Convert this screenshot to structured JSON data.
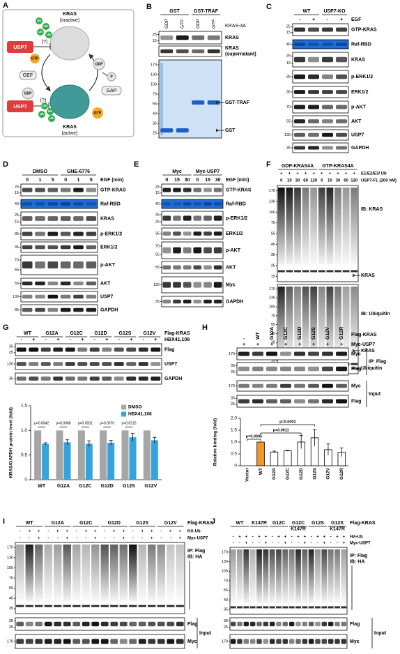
{
  "panels": {
    "A": {
      "letter": "A",
      "texts": [
        "KRAS",
        "(inactive)",
        "USP7",
        "(?)",
        "GTP",
        "GEF",
        "GDP",
        "GDP",
        "P",
        "GAP",
        "GTP",
        "USP7",
        "(?)",
        "KRAS",
        "(active)"
      ],
      "ub": [
        "Ub",
        "Ub",
        "Ub",
        "Ub",
        "Ub",
        "Ub",
        "Ub",
        "Ub"
      ]
    },
    "B": {
      "letter": "B",
      "groups": [
        "GST",
        "GST-TRAF"
      ],
      "conditions": [
        {
          "marks": [
            "GDP",
            "GTP",
            "GDP",
            "GTP"
          ]
        }
      ],
      "note": "KRAS-4A",
      "blots": [
        {
          "label": "KRAS",
          "mw": [
            25,
            15
          ]
        },
        {
          "label": [
            "KRAS",
            "(supernatant)"
          ]
        },
        {
          "arrow_labels": [
            "GST-TRAF",
            "GST"
          ],
          "mw": [
            170,
            130,
            100,
            70,
            55,
            40,
            35,
            25
          ]
        }
      ]
    },
    "C": {
      "letter": "C",
      "groups": [
        "WT",
        "USP7-KO"
      ],
      "conditions": [
        {
          "label": "EGF",
          "marks": [
            "-",
            "+",
            "-",
            "+"
          ]
        }
      ],
      "blots": [
        {
          "label": "GTP-KRAS",
          "mw": [
            25,
            15
          ]
        },
        {
          "label": "Raf-RBD",
          "mw": [
            40
          ]
        },
        {
          "label": "KRAS",
          "mw": [
            25,
            15
          ]
        },
        {
          "label": "p-ERK1/2",
          "mw": [
            35
          ]
        },
        {
          "label": "ERK1/2",
          "mw": [
            35
          ]
        },
        {
          "label": "p-AKT",
          "mw": [
            70
          ]
        },
        {
          "label": "AKT",
          "mw": [
            55
          ]
        },
        {
          "label": "USP7",
          "mw": [
            130
          ]
        },
        {
          "label": "GAPDH",
          "mw": [
            35
          ]
        }
      ]
    },
    "D": {
      "letter": "D",
      "groups": [
        "DMSO",
        "GNE-6776"
      ],
      "conditions": [
        {
          "label": "EGF (min)",
          "marks": [
            0,
            1,
            5,
            0,
            1,
            5
          ]
        }
      ],
      "blots": [
        {
          "label": "GTP-KRAS",
          "mw": [
            25,
            15
          ]
        },
        {
          "label": "Raf-RBD",
          "mw": [
            40
          ]
        },
        {
          "label": "KRAS",
          "mw": [
            25,
            15
          ]
        },
        {
          "label": "p-ERK1/2",
          "mw": [
            35
          ]
        },
        {
          "label": "ERK1/2",
          "mw": [
            35
          ]
        },
        {
          "label": "p-AKT",
          "mw": [
            70,
            55
          ]
        },
        {
          "label": "AKT",
          "mw": [
            55
          ]
        },
        {
          "label": "USP7",
          "mw": [
            130
          ]
        },
        {
          "label": "GAPDH",
          "mw": [
            35
          ]
        }
      ]
    },
    "E": {
      "letter": "E",
      "groups": [
        "Myc",
        "Myc-USP7"
      ],
      "conditions": [
        {
          "label": "EGF (min)",
          "marks": [
            0,
            15,
            30,
            0,
            15,
            30
          ]
        }
      ],
      "blots": [
        {
          "label": "GTP-KRAS",
          "mw": [
            25,
            15
          ]
        },
        {
          "label": "Raf-RBD",
          "mw": [
            40
          ]
        },
        {
          "label": "p-ERK1/2",
          "mw": [
            35,
            25
          ]
        },
        {
          "label": "ERK1/2",
          "mw": [
            35
          ]
        },
        {
          "label": "p-AKT",
          "mw": [
            70,
            55
          ]
        },
        {
          "label": "AKT",
          "mw": [
            55
          ]
        },
        {
          "label": "Myc",
          "mw": [
            130
          ]
        },
        {
          "label": "GAPDH",
          "mw": [
            35
          ]
        }
      ]
    },
    "F": {
      "letter": "F",
      "groups": [
        "GDP-KRAS4A",
        "GTP-KRAS4A"
      ],
      "conditions": [
        {
          "label": "E1/E2/E3/ Ub",
          "marks": [
            "+",
            "+",
            "+",
            "+",
            "+",
            "+",
            "+",
            "+",
            "+",
            "+"
          ]
        },
        {
          "label": "USP7-FL (200 nM)",
          "marks": [
            0,
            10,
            30,
            60,
            120,
            0,
            10,
            30,
            60,
            120
          ]
        }
      ],
      "blots": [
        {
          "label": "IB: KRAS",
          "arrow_labels": [
            "KRAS"
          ],
          "mw": [
            170,
            130,
            100,
            70,
            55,
            40,
            35,
            25,
            15
          ]
        },
        {
          "label": "IB: Ubiquitin",
          "arrow_labels": [
            "KRAS",
            "Ubiquitin"
          ],
          "mw": [
            170,
            130,
            100,
            70,
            55,
            40,
            35,
            25,
            15,
            10
          ]
        }
      ]
    },
    "G": {
      "letter": "G",
      "groups": [
        "WT",
        "G12A",
        "G12C",
        "G12D",
        "G12S",
        "G12V"
      ],
      "group_label": "Flag-KRAS",
      "conditions": [
        {
          "label": "HBX41,108",
          "marks": [
            "-",
            "+",
            "-",
            "+",
            "-",
            "+",
            "-",
            "+",
            "-",
            "+",
            "-",
            "+"
          ]
        }
      ],
      "blots": [
        {
          "label": "Flag",
          "mw": [
            35,
            25
          ]
        },
        {
          "label": "USP7",
          "mw": [
            130
          ]
        },
        {
          "label": "GAPDH",
          "mw": [
            35
          ]
        }
      ],
      "chart": {
        "type": "bar",
        "y_label": "KRAS/GAPDH protein level (fold)",
        "categories": [
          "WT",
          "G12A",
          "G12C",
          "G12D",
          "G12S",
          "G12V"
        ],
        "series": [
          {
            "name": "DMSO",
            "color": "#a6a6a6",
            "values": [
              1,
              1,
              1,
              1,
              1,
              1
            ]
          },
          {
            "name": "HBX41,108",
            "color": "#36a3dc",
            "values": [
              0.73,
              0.76,
              0.73,
              0.75,
              0.86,
              0.8
            ],
            "errors": [
              0.02,
              0.05,
              0.06,
              0.05,
              0.08,
              0.06
            ]
          }
        ],
        "p_values": [
          "p=0.0042",
          "p=0.0088",
          "p=0.0031",
          "p=0.0070",
          "p=0.0215"
        ],
        "ylim": [
          0,
          1.5
        ],
        "yticks": [
          0,
          0.5,
          {
            "value": 1,
            "label": "1.0"
          },
          1.5
        ],
        "legend": "upper right"
      }
    },
    "H": {
      "letter": "H",
      "groups": [
        "-",
        "WT",
        "G12A",
        "G12C",
        "G12D",
        "G12S",
        "G12V",
        "G12R"
      ],
      "group_label": "Flag-KRAS",
      "conditions": [
        {
          "label": "Myc-USP7",
          "marks": [
            "+",
            "+",
            "+",
            "+",
            "+",
            "+",
            "+",
            "+"
          ]
        }
      ],
      "blots": [
        {
          "label": "Myc",
          "mw": [
            170
          ]
        },
        {
          "label": "Flag",
          "mw": [
            35,
            25
          ]
        },
        {
          "label": "Myc",
          "mw": [
            170
          ]
        },
        {
          "label": "Flag",
          "mw": [
            35,
            25
          ]
        }
      ],
      "brackets": [
        "IP: Flag",
        "Input"
      ],
      "chart": {
        "type": "bar",
        "y_label": "Relative binding (fold)",
        "categories": [
          "Vector",
          "WT",
          "G12A",
          "G12C",
          "G12D",
          "G12S",
          "G12V",
          "G12R"
        ],
        "values": [
          0,
          1,
          0.58,
          0.63,
          1,
          1.18,
          0.68,
          0.57
        ],
        "errors": [
          0,
          0,
          0.04,
          0.02,
          0.28,
          0.35,
          0.24,
          0.18
        ],
        "colors": [
          "#ffffff",
          "#f0962e",
          "#ffffff",
          "#ffffff",
          "#ffffff",
          "#ffffff",
          "#ffffff",
          "#ffffff"
        ],
        "annotations": [
          "p=0.0005",
          "p=0.0011",
          "p=0.0002"
        ],
        "ylim": [
          0,
          2
        ],
        "yticks": [
          0,
          0.5,
          {
            "value": 1,
            "label": "1.0"
          },
          1.5,
          {
            "value": 2,
            "label": "2.0"
          }
        ]
      }
    },
    "I": {
      "letter": "I",
      "groups": [
        "WT",
        "G12A",
        "G12C",
        "G12D",
        "G12S",
        "G12V"
      ],
      "group_label": "Flag-KRAS",
      "conditions": [
        {
          "label": "HA-Ub",
          "marks": [
            "-",
            "+",
            "+",
            "-",
            "+",
            "+",
            "-",
            "+",
            "+",
            "-",
            "+",
            "+",
            "-",
            "+",
            "+",
            "-",
            "+",
            "+"
          ]
        },
        {
          "label": "Myc-USP7",
          "marks": [
            "-",
            "-",
            "+",
            "-",
            "-",
            "+",
            "-",
            "-",
            "+",
            "-",
            "-",
            "+",
            "-",
            "-",
            "+",
            "-",
            "-",
            "+"
          ]
        }
      ],
      "blots": [
        {
          "label": [
            "IP: Flag",
            "IB: HA"
          ],
          "mw": [
            170,
            130,
            100,
            70,
            55,
            40,
            35
          ]
        },
        {
          "label": "Flag",
          "mw": [
            35,
            25
          ]
        },
        {
          "label": "Myc",
          "mw": [
            170
          ]
        }
      ],
      "brackets": [
        "Input"
      ]
    },
    "J": {
      "letter": "J",
      "groups": [
        "WT",
        "K147R",
        "G12C",
        [
          "G12C",
          "K147R"
        ],
        "G12S",
        [
          "G12S",
          "K147R"
        ]
      ],
      "group_label": "Flag-KRAS",
      "conditions": [
        {
          "label": "HA-Ub",
          "marks": [
            "-",
            "+",
            "+",
            "-",
            "+",
            "+",
            "-",
            "+",
            "+",
            "-",
            "+",
            "+",
            "-",
            "+",
            "+",
            "-",
            "+",
            "+"
          ]
        },
        {
          "label": "Myc-USP7",
          "marks": [
            "-",
            "-",
            "+",
            "-",
            "-",
            "+",
            "-",
            "-",
            "+",
            "-",
            "-",
            "+",
            "-",
            "-",
            "+",
            "-",
            "-",
            "+"
          ]
        }
      ],
      "blots": [
        {
          "label": [
            "IP: Flag",
            "IB: HA"
          ],
          "mw": [
            170,
            130,
            100,
            70,
            55,
            40,
            35
          ]
        },
        {
          "label": "Flag",
          "mw": [
            35,
            25
          ]
        },
        {
          "label": "Myc",
          "mw": [
            170
          ]
        }
      ],
      "brackets": [
        "Input"
      ]
    }
  }
}
